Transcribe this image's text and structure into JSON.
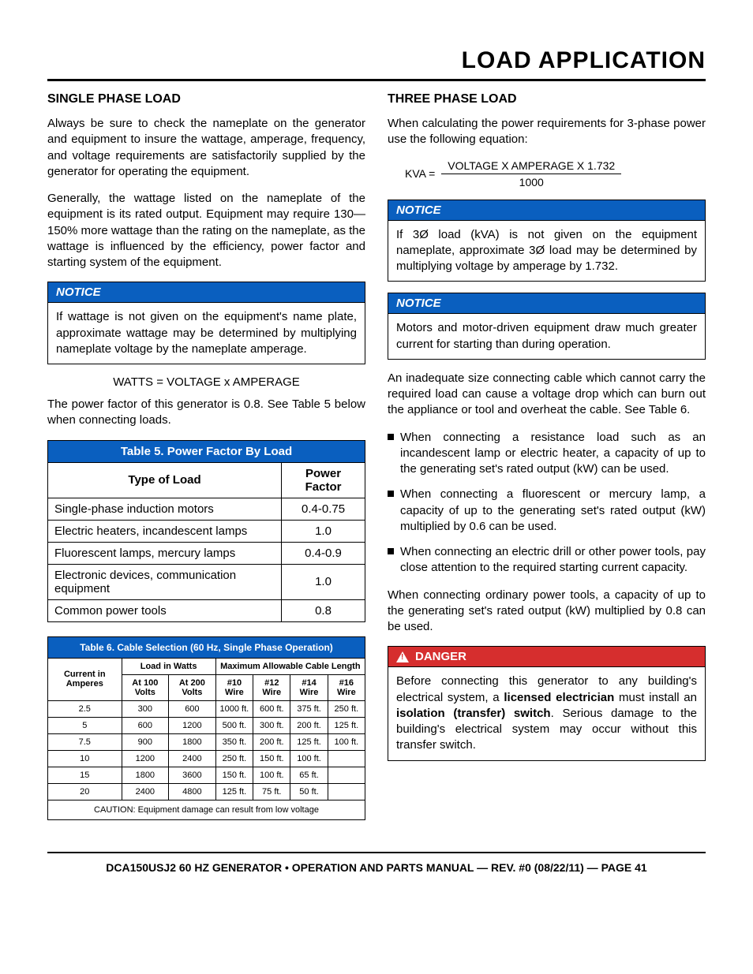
{
  "page_title": "LOAD APPLICATION",
  "left": {
    "h_single": "SINGLE PHASE LOAD",
    "p1": "Always be sure to check the nameplate on the generator and equipment to insure the wattage, amperage, frequency, and voltage requirements are satisfactorily supplied by the generator for operating the equipment.",
    "p2": "Generally, the wattage listed on the nameplate of the equipment is its rated output. Equipment may require 130—150% more wattage than the rating on the nameplate, as the wattage is influenced by the efficiency, power factor and starting system of the equipment.",
    "notice1_head": "NOTICE",
    "notice1_body": "If wattage is not given on the equipment's name plate, approximate wattage may be determined by multiplying nameplate voltage by the nameplate amperage.",
    "formula": "WATTS = VOLTAGE x AMPERAGE",
    "p3": "The power factor of this generator is 0.8. See Table 5 below when connecting loads.",
    "t5": {
      "title": "Table 5. Power Factor By Load",
      "col1": "Type of Load",
      "col2": "Power Factor",
      "rows": [
        {
          "type": "Single-phase induction motors",
          "pf": "0.4-0.75"
        },
        {
          "type": "Electric heaters, incandescent lamps",
          "pf": "1.0"
        },
        {
          "type": "Fluorescent lamps, mercury lamps",
          "pf": "0.4-0.9"
        },
        {
          "type": "Electronic devices, communication equipment",
          "pf": "1.0"
        },
        {
          "type": "Common power tools",
          "pf": "0.8"
        }
      ]
    },
    "t6": {
      "title": "Table 6. Cable Selection (60 Hz, Single Phase Operation)",
      "h_current": "Current in Amperes",
      "h_load": "Load in Watts",
      "h_max": "Maximum Allowable Cable Length",
      "h_100v": "At 100 Volts",
      "h_200v": "At 200 Volts",
      "h_w10": "#10 Wire",
      "h_w12": "#12 Wire",
      "h_w14": "#14 Wire",
      "h_w16": "#16 Wire",
      "rows": [
        {
          "amp": "2.5",
          "v100": "300",
          "v200": "600",
          "w10": "1000 ft.",
          "w12": "600 ft.",
          "w14": "375 ft.",
          "w16": "250 ft."
        },
        {
          "amp": "5",
          "v100": "600",
          "v200": "1200",
          "w10": "500 ft.",
          "w12": "300 ft.",
          "w14": "200 ft.",
          "w16": "125 ft."
        },
        {
          "amp": "7.5",
          "v100": "900",
          "v200": "1800",
          "w10": "350 ft.",
          "w12": "200 ft.",
          "w14": "125 ft.",
          "w16": "100 ft."
        },
        {
          "amp": "10",
          "v100": "1200",
          "v200": "2400",
          "w10": "250 ft.",
          "w12": "150 ft.",
          "w14": "100 ft.",
          "w16": ""
        },
        {
          "amp": "15",
          "v100": "1800",
          "v200": "3600",
          "w10": "150 ft.",
          "w12": "100 ft.",
          "w14": "65 ft.",
          "w16": ""
        },
        {
          "amp": "20",
          "v100": "2400",
          "v200": "4800",
          "w10": "125 ft.",
          "w12": "75 ft.",
          "w14": "50 ft.",
          "w16": ""
        }
      ],
      "caution": "CAUTION: Equipment damage can result from low voltage"
    }
  },
  "right": {
    "h_three": "THREE PHASE LOAD",
    "p1": "When calculating the power requirements for 3-phase power use the following equation:",
    "kva_label": "KVA =",
    "kva_num": "VOLTAGE  X  AMPERAGE X 1.732",
    "kva_den": "1000",
    "notice2_head": "NOTICE",
    "notice2_body": "If 3Ø load (kVA) is not given on the equipment nameplate, approximate 3Ø load may be determined by multiplying voltage by amperage by 1.732.",
    "notice3_head": "NOTICE",
    "notice3_body": "Motors and motor-driven equipment draw much greater current for starting than during operation.",
    "p2": "An inadequate size connecting cable which cannot carry the required load can cause a voltage drop which can burn out the appliance or tool and overheat the cable. See Table 6.",
    "bullets": [
      "When connecting a resistance load such as an incandescent lamp or electric heater, a capacity of up to the generating set's rated output (kW) can be used.",
      "When connecting a fluorescent or mercury lamp, a capacity of up to the generating set's rated output (kW) multiplied by 0.6 can be used.",
      "When connecting an electric drill or other power tools, pay close attention to the required starting current capacity."
    ],
    "p3": "When connecting ordinary power tools, a capacity of up to the generating set's rated output (kW) multiplied by 0.8 can be used.",
    "danger_head": "DANGER",
    "danger_pre": "Before connecting this generator to any building's electrical system, a ",
    "danger_b1": "licensed electrician",
    "danger_mid": " must install an ",
    "danger_b2": "isolation (transfer) switch",
    "danger_post": ". Serious damage to the building's electrical system may occur without this transfer switch."
  },
  "footer": "DCA150USJ2 60 HZ GENERATOR • OPERATION AND PARTS MANUAL — REV. #0 (08/22/11) — PAGE 41",
  "colors": {
    "notice_bg": "#0a5fbf",
    "danger_bg": "#d62e2e"
  }
}
